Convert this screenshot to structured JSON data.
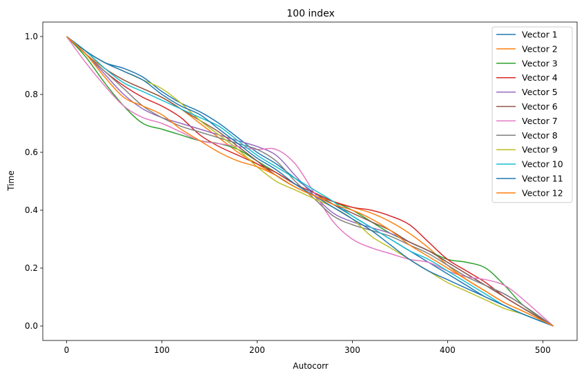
{
  "chart_data": {
    "type": "line",
    "title": "100 index",
    "xlabel": "Autocorr",
    "ylabel": "Time",
    "xlim": [
      -25,
      536
    ],
    "ylim": [
      -0.05,
      1.05
    ],
    "xticks": [
      0,
      100,
      200,
      300,
      400,
      500
    ],
    "xtick_labels": [
      "0",
      "100",
      "200",
      "300",
      "400",
      "500"
    ],
    "yticks": [
      0.0,
      0.2,
      0.4,
      0.6,
      0.8,
      1.0
    ],
    "ytick_labels": [
      "0.0",
      "0.2",
      "0.4",
      "0.6",
      "0.8",
      "1.0"
    ],
    "grid": false,
    "legend_position": "top-right",
    "series": [
      {
        "name": "Vector 1",
        "color": "#1f77b4",
        "x": [
          0,
          20,
          40,
          60,
          80,
          100,
          120,
          140,
          160,
          180,
          200,
          220,
          240,
          260,
          280,
          300,
          320,
          340,
          360,
          380,
          400,
          420,
          440,
          460,
          480,
          511
        ],
        "y": [
          1.0,
          0.95,
          0.91,
          0.89,
          0.86,
          0.81,
          0.77,
          0.74,
          0.7,
          0.65,
          0.6,
          0.56,
          0.51,
          0.46,
          0.42,
          0.38,
          0.34,
          0.3,
          0.26,
          0.22,
          0.18,
          0.14,
          0.1,
          0.07,
          0.04,
          0.0
        ]
      },
      {
        "name": "Vector 2",
        "color": "#ff7f0e",
        "x": [
          0,
          20,
          40,
          60,
          80,
          100,
          120,
          140,
          160,
          180,
          200,
          220,
          240,
          260,
          280,
          300,
          320,
          340,
          360,
          380,
          400,
          420,
          440,
          460,
          480,
          511
        ],
        "y": [
          1.0,
          0.94,
          0.89,
          0.85,
          0.82,
          0.79,
          0.75,
          0.7,
          0.65,
          0.6,
          0.56,
          0.52,
          0.48,
          0.45,
          0.43,
          0.41,
          0.39,
          0.36,
          0.32,
          0.27,
          0.21,
          0.16,
          0.12,
          0.08,
          0.05,
          0.0
        ]
      },
      {
        "name": "Vector 3",
        "color": "#2ca02c",
        "x": [
          0,
          20,
          40,
          60,
          80,
          100,
          120,
          140,
          160,
          180,
          200,
          220,
          240,
          260,
          280,
          300,
          320,
          340,
          360,
          380,
          400,
          420,
          440,
          460,
          480,
          511
        ],
        "y": [
          1.0,
          0.93,
          0.84,
          0.76,
          0.7,
          0.68,
          0.66,
          0.64,
          0.63,
          0.61,
          0.57,
          0.53,
          0.49,
          0.46,
          0.43,
          0.4,
          0.36,
          0.32,
          0.29,
          0.26,
          0.23,
          0.22,
          0.2,
          0.14,
          0.07,
          0.0
        ]
      },
      {
        "name": "Vector 4",
        "color": "#d62728",
        "x": [
          0,
          20,
          40,
          60,
          80,
          100,
          120,
          140,
          160,
          180,
          200,
          220,
          240,
          260,
          280,
          300,
          320,
          340,
          360,
          380,
          400,
          420,
          440,
          460,
          480,
          511
        ],
        "y": [
          1.0,
          0.94,
          0.88,
          0.83,
          0.79,
          0.76,
          0.72,
          0.66,
          0.62,
          0.59,
          0.56,
          0.53,
          0.49,
          0.46,
          0.43,
          0.41,
          0.4,
          0.38,
          0.35,
          0.29,
          0.23,
          0.19,
          0.15,
          0.1,
          0.06,
          0.0
        ]
      },
      {
        "name": "Vector 5",
        "color": "#9467bd",
        "x": [
          0,
          20,
          40,
          60,
          80,
          100,
          120,
          140,
          160,
          180,
          200,
          220,
          240,
          260,
          280,
          300,
          320,
          340,
          360,
          380,
          400,
          420,
          440,
          460,
          480,
          511
        ],
        "y": [
          1.0,
          0.94,
          0.87,
          0.8,
          0.75,
          0.72,
          0.7,
          0.68,
          0.66,
          0.64,
          0.62,
          0.59,
          0.52,
          0.45,
          0.39,
          0.36,
          0.34,
          0.32,
          0.29,
          0.26,
          0.22,
          0.18,
          0.14,
          0.11,
          0.07,
          0.0
        ]
      },
      {
        "name": "Vector 6",
        "color": "#8c564b",
        "x": [
          0,
          20,
          40,
          60,
          80,
          100,
          120,
          140,
          160,
          180,
          200,
          220,
          240,
          260,
          280,
          300,
          320,
          340,
          360,
          380,
          400,
          420,
          440,
          460,
          480,
          511
        ],
        "y": [
          1.0,
          0.95,
          0.89,
          0.85,
          0.82,
          0.79,
          0.75,
          0.71,
          0.67,
          0.62,
          0.57,
          0.52,
          0.48,
          0.45,
          0.42,
          0.39,
          0.36,
          0.33,
          0.29,
          0.26,
          0.22,
          0.18,
          0.14,
          0.1,
          0.06,
          0.0
        ]
      },
      {
        "name": "Vector 7",
        "color": "#e377c2",
        "x": [
          0,
          20,
          40,
          60,
          80,
          100,
          120,
          140,
          160,
          180,
          200,
          220,
          240,
          260,
          280,
          300,
          320,
          340,
          360,
          380,
          400,
          420,
          440,
          460,
          480,
          511
        ],
        "y": [
          1.0,
          0.91,
          0.83,
          0.76,
          0.72,
          0.7,
          0.67,
          0.64,
          0.63,
          0.62,
          0.61,
          0.61,
          0.56,
          0.46,
          0.36,
          0.3,
          0.27,
          0.25,
          0.23,
          0.22,
          0.19,
          0.17,
          0.16,
          0.14,
          0.09,
          0.0
        ]
      },
      {
        "name": "Vector 8",
        "color": "#7f7f7f",
        "x": [
          0,
          20,
          40,
          60,
          80,
          100,
          120,
          140,
          160,
          180,
          200,
          220,
          240,
          260,
          280,
          300,
          320,
          340,
          360,
          380,
          400,
          420,
          440,
          460,
          480,
          511
        ],
        "y": [
          1.0,
          0.94,
          0.88,
          0.82,
          0.76,
          0.72,
          0.69,
          0.67,
          0.65,
          0.63,
          0.61,
          0.57,
          0.5,
          0.44,
          0.38,
          0.35,
          0.33,
          0.31,
          0.28,
          0.25,
          0.21,
          0.17,
          0.14,
          0.11,
          0.07,
          0.0
        ]
      },
      {
        "name": "Vector 9",
        "color": "#bcbd22",
        "x": [
          0,
          20,
          40,
          60,
          80,
          100,
          120,
          140,
          160,
          180,
          200,
          220,
          240,
          260,
          280,
          300,
          320,
          340,
          360,
          380,
          400,
          420,
          440,
          460,
          480,
          511
        ],
        "y": [
          1.0,
          0.95,
          0.91,
          0.88,
          0.85,
          0.82,
          0.77,
          0.71,
          0.66,
          0.61,
          0.55,
          0.5,
          0.47,
          0.44,
          0.41,
          0.37,
          0.31,
          0.27,
          0.23,
          0.19,
          0.15,
          0.12,
          0.09,
          0.06,
          0.04,
          0.0
        ]
      },
      {
        "name": "Vector 10",
        "color": "#17becf",
        "x": [
          0,
          20,
          40,
          60,
          80,
          100,
          120,
          140,
          160,
          180,
          200,
          220,
          240,
          260,
          280,
          300,
          320,
          340,
          360,
          380,
          400,
          420,
          440,
          460,
          480,
          511
        ],
        "y": [
          1.0,
          0.95,
          0.89,
          0.84,
          0.81,
          0.78,
          0.75,
          0.72,
          0.69,
          0.64,
          0.59,
          0.55,
          0.51,
          0.47,
          0.43,
          0.38,
          0.34,
          0.3,
          0.26,
          0.23,
          0.19,
          0.15,
          0.11,
          0.07,
          0.04,
          0.0
        ]
      },
      {
        "name": "Vector 11",
        "color": "#1f77b4",
        "x": [
          0,
          20,
          40,
          60,
          80,
          100,
          120,
          140,
          160,
          180,
          200,
          220,
          240,
          260,
          280,
          300,
          320,
          340,
          360,
          380,
          400,
          420,
          440,
          460,
          480,
          511
        ],
        "y": [
          1.0,
          0.95,
          0.91,
          0.88,
          0.85,
          0.8,
          0.76,
          0.73,
          0.68,
          0.63,
          0.58,
          0.54,
          0.49,
          0.45,
          0.41,
          0.37,
          0.33,
          0.28,
          0.23,
          0.19,
          0.16,
          0.13,
          0.1,
          0.07,
          0.04,
          0.0
        ]
      },
      {
        "name": "Vector 12",
        "color": "#ff7f0e",
        "x": [
          0,
          20,
          40,
          60,
          80,
          100,
          120,
          140,
          160,
          180,
          200,
          220,
          240,
          260,
          280,
          300,
          320,
          340,
          360,
          380,
          400,
          420,
          440,
          460,
          480,
          511
        ],
        "y": [
          1.0,
          0.94,
          0.86,
          0.79,
          0.76,
          0.73,
          0.68,
          0.64,
          0.6,
          0.57,
          0.55,
          0.52,
          0.48,
          0.45,
          0.42,
          0.4,
          0.37,
          0.33,
          0.28,
          0.24,
          0.2,
          0.16,
          0.12,
          0.08,
          0.05,
          0.0
        ]
      }
    ]
  }
}
